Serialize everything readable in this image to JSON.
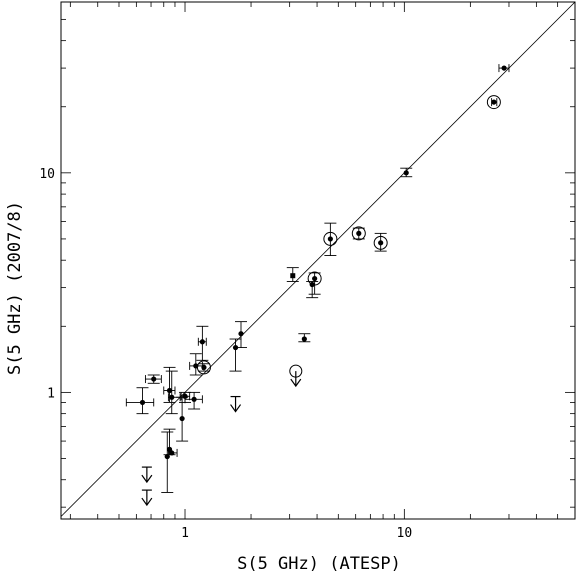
{
  "chart_data": {
    "type": "scatter",
    "title": "",
    "xlabel": "S(5 GHz) (ATESP)",
    "ylabel": "S(5 GHz) (2007/8)",
    "xscale": "log",
    "yscale": "log",
    "xlim": [
      0.272,
      60
    ],
    "ylim": [
      0.265,
      60
    ],
    "x_tick_labels": [
      {
        "value": 1,
        "label": "1"
      },
      {
        "value": 10,
        "label": "10"
      }
    ],
    "y_tick_labels": [
      {
        "value": 1,
        "label": "1"
      },
      {
        "value": 10,
        "label": "10"
      }
    ],
    "reference_line": "y = x",
    "grid": false,
    "legend": null,
    "points": [
      {
        "x": 28.5,
        "y": 30.0,
        "xerr": [
          27.0,
          30.0
        ],
        "yerr": null,
        "circled": false,
        "upper_limit": false,
        "marker": "dot"
      },
      {
        "x": 25.6,
        "y": 21.0,
        "xerr": [
          25.0,
          26.4
        ],
        "yerr": null,
        "circled": true,
        "upper_limit": false,
        "marker": "dot"
      },
      {
        "x": 10.2,
        "y": 10.0,
        "xerr": null,
        "yerr": [
          9.6,
          10.5
        ],
        "circled": false,
        "upper_limit": false,
        "marker": "dot"
      },
      {
        "x": 6.2,
        "y": 5.3,
        "xerr": null,
        "yerr": [
          5.0,
          5.6
        ],
        "circled": true,
        "upper_limit": false,
        "marker": "dot"
      },
      {
        "x": 7.8,
        "y": 4.8,
        "xerr": null,
        "yerr": [
          4.4,
          5.3
        ],
        "circled": true,
        "upper_limit": false,
        "marker": "dot"
      },
      {
        "x": 4.6,
        "y": 5.0,
        "xerr": null,
        "yerr": [
          4.2,
          5.9
        ],
        "circled": true,
        "upper_limit": false,
        "marker": "dot"
      },
      {
        "x": 3.9,
        "y": 3.3,
        "xerr": null,
        "yerr": [
          2.8,
          3.5
        ],
        "circled": true,
        "upper_limit": false,
        "marker": "dot"
      },
      {
        "x": 3.8,
        "y": 3.1,
        "xerr": null,
        "yerr": [
          2.7,
          3.2
        ],
        "circled": false,
        "upper_limit": false,
        "marker": "dot"
      },
      {
        "x": 3.1,
        "y": 3.4,
        "xerr": null,
        "yerr": [
          3.2,
          3.7
        ],
        "circled": false,
        "upper_limit": false,
        "marker": "square"
      },
      {
        "x": 3.5,
        "y": 1.75,
        "xerr": null,
        "yerr": [
          1.7,
          1.85
        ],
        "circled": false,
        "upper_limit": false,
        "marker": "dot"
      },
      {
        "x": 3.2,
        "y": 1.25,
        "xerr": null,
        "yerr": null,
        "circled": true,
        "upper_limit": true,
        "marker": "open-circle"
      },
      {
        "x": 1.8,
        "y": 1.85,
        "xerr": null,
        "yerr": [
          1.6,
          2.1
        ],
        "circled": false,
        "upper_limit": false,
        "marker": "dot"
      },
      {
        "x": 1.7,
        "y": 1.6,
        "xerr": null,
        "yerr": [
          1.25,
          1.75
        ],
        "circled": false,
        "upper_limit": false,
        "marker": "dot"
      },
      {
        "x": 1.2,
        "y": 1.7,
        "xerr": [
          1.15,
          1.25
        ],
        "yerr": [
          1.4,
          2.0
        ],
        "circled": false,
        "upper_limit": false,
        "marker": "dot"
      },
      {
        "x": 1.22,
        "y": 1.3,
        "xerr": null,
        "yerr": [
          1.25,
          1.35
        ],
        "circled": true,
        "upper_limit": false,
        "marker": "dot"
      },
      {
        "x": 1.12,
        "y": 1.32,
        "xerr": [
          1.05,
          1.2
        ],
        "yerr": [
          1.2,
          1.5
        ],
        "circled": false,
        "upper_limit": false,
        "marker": "dot"
      },
      {
        "x": 0.72,
        "y": 1.15,
        "xerr": [
          0.66,
          0.78
        ],
        "yerr": [
          1.1,
          1.2
        ],
        "circled": false,
        "upper_limit": false,
        "marker": "dot"
      },
      {
        "x": 0.64,
        "y": 0.9,
        "xerr": [
          0.54,
          0.72
        ],
        "yerr": [
          0.8,
          1.05
        ],
        "circled": false,
        "upper_limit": false,
        "marker": "dot"
      },
      {
        "x": 0.85,
        "y": 1.02,
        "xerr": [
          0.8,
          0.9
        ],
        "yerr": [
          0.9,
          1.3
        ],
        "circled": false,
        "upper_limit": false,
        "marker": "dot"
      },
      {
        "x": 0.87,
        "y": 0.95,
        "xerr": [
          0.84,
          0.95
        ],
        "yerr": [
          0.8,
          1.25
        ],
        "circled": false,
        "upper_limit": false,
        "marker": "dot"
      },
      {
        "x": 1.0,
        "y": 0.96,
        "xerr": [
          0.96,
          1.05
        ],
        "yerr": [
          0.9,
          1.0
        ],
        "circled": false,
        "upper_limit": false,
        "marker": "dot"
      },
      {
        "x": 1.1,
        "y": 0.93,
        "xerr": [
          1.0,
          1.2
        ],
        "yerr": [
          0.84,
          1.0
        ],
        "circled": false,
        "upper_limit": false,
        "marker": "dot"
      },
      {
        "x": 0.97,
        "y": 0.76,
        "xerr": null,
        "yerr": [
          0.6,
          0.95
        ],
        "circled": false,
        "upper_limit": false,
        "marker": "dot"
      },
      {
        "x": 0.85,
        "y": 0.55,
        "xerr": null,
        "yerr": [
          0.52,
          0.68
        ],
        "circled": false,
        "upper_limit": false,
        "marker": "dot"
      },
      {
        "x": 0.83,
        "y": 0.51,
        "xerr": null,
        "yerr": [
          0.35,
          0.66
        ],
        "circled": false,
        "upper_limit": false,
        "marker": "dot"
      },
      {
        "x": 0.87,
        "y": 0.53,
        "xerr": [
          0.84,
          0.92
        ],
        "yerr": null,
        "circled": false,
        "upper_limit": false,
        "marker": "dot"
      },
      {
        "x": 1.7,
        "y": 0.88,
        "xerr": null,
        "yerr": null,
        "circled": false,
        "upper_limit": true,
        "marker": "arrow"
      },
      {
        "x": 0.67,
        "y": 0.42,
        "xerr": null,
        "yerr": null,
        "circled": false,
        "upper_limit": true,
        "marker": "arrow"
      },
      {
        "x": 0.67,
        "y": 0.33,
        "xerr": null,
        "yerr": null,
        "circled": false,
        "upper_limit": true,
        "marker": "arrow"
      }
    ]
  }
}
